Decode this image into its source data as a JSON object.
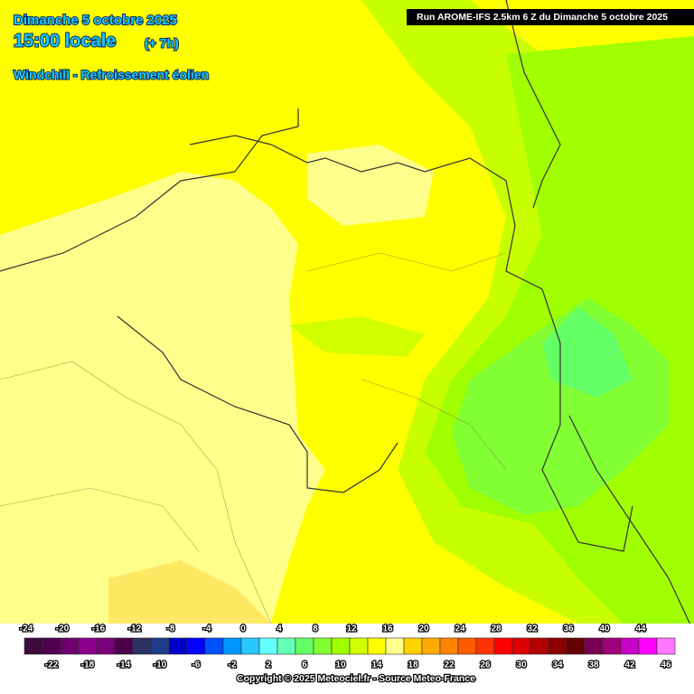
{
  "header": {
    "date": "Dimanche 5 octobre 2025",
    "time": "15:00 locale",
    "offset": "(+ 7h)",
    "parameter": "Windchill - Refroissement éolien",
    "run": "Run AROME-IFS 2.5km 6 Z du Dimanche 5 octobre 2025"
  },
  "legend": [
    {
      "value": -24,
      "color": "#3c0a3c"
    },
    {
      "value": -22,
      "color": "#500050"
    },
    {
      "value": -20,
      "color": "#6e006e"
    },
    {
      "value": -18,
      "color": "#8c008c"
    },
    {
      "value": -16,
      "color": "#780078"
    },
    {
      "value": -14,
      "color": "#4b004b"
    },
    {
      "value": -12,
      "color": "#2d3264"
    },
    {
      "value": -10,
      "color": "#1e3c8c"
    },
    {
      "value": -8,
      "color": "#0000c8"
    },
    {
      "value": -6,
      "color": "#0000ff"
    },
    {
      "value": -4,
      "color": "#0050ff"
    },
    {
      "value": -2,
      "color": "#0096ff"
    },
    {
      "value": 0,
      "color": "#28c8ff"
    },
    {
      "value": 2,
      "color": "#64ffff"
    },
    {
      "value": 4,
      "color": "#64ffb4"
    },
    {
      "value": 6,
      "color": "#64ff64"
    },
    {
      "value": 8,
      "color": "#82ff32"
    },
    {
      "value": 10,
      "color": "#a0ff00"
    },
    {
      "value": 12,
      "color": "#d2ff00"
    },
    {
      "value": 14,
      "color": "#ffff00"
    },
    {
      "value": 16,
      "color": "#ffff8c"
    },
    {
      "value": 18,
      "color": "#ffd200"
    },
    {
      "value": 20,
      "color": "#ffaa00"
    },
    {
      "value": 22,
      "color": "#ff8200"
    },
    {
      "value": 24,
      "color": "#ff5a00"
    },
    {
      "value": 26,
      "color": "#ff3200"
    },
    {
      "value": 28,
      "color": "#ff0000"
    },
    {
      "value": 30,
      "color": "#dc0000"
    },
    {
      "value": 32,
      "color": "#b40000"
    },
    {
      "value": 34,
      "color": "#8c0000"
    },
    {
      "value": 36,
      "color": "#640000"
    },
    {
      "value": 38,
      "color": "#780050"
    },
    {
      "value": 40,
      "color": "#a00078"
    },
    {
      "value": 42,
      "color": "#c800c8"
    },
    {
      "value": 44,
      "color": "#ff00ff"
    },
    {
      "value": 46,
      "color": "#ff78ff"
    }
  ],
  "footer": {
    "copyright": "Copyright © 2025 Meteociel.fr - Source Meteo-France"
  }
}
